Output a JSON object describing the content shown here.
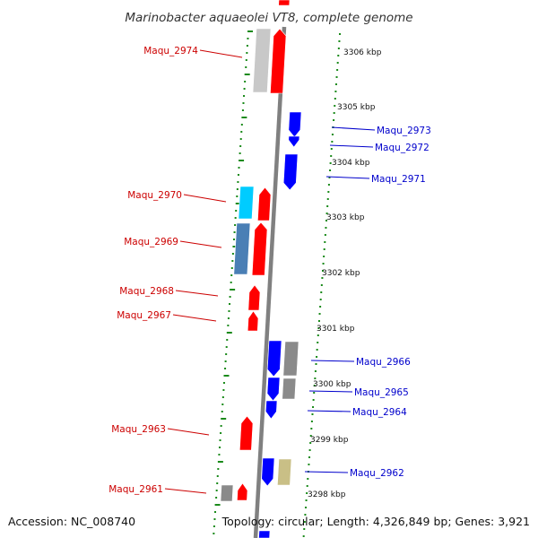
{
  "title": "Marinobacter aquaeolei VT8, complete genome",
  "footer": {
    "accession": "Accession: NC_008740",
    "topology": "Topology: circular; Length: 4,326,849 bp; Genes: 3,921"
  },
  "colors": {
    "forward": "#ff0000",
    "reverse": "#0000ff",
    "label_forward": "#cc0000",
    "label_reverse": "#0000cc",
    "tick": "#1a8a1a",
    "backbone": "#808080",
    "gray": "#8a8a8a",
    "light_gray": "#c8c8c8",
    "cyan": "#00ccff",
    "steel": "#4a7fb5",
    "khaki": "#c9bf86"
  },
  "kbp_labels": [
    "3306 kbp",
    "3305 kbp",
    "3304 kbp",
    "3303 kbp",
    "3302 kbp",
    "3301 kbp",
    "3300 kbp",
    "3299 kbp",
    "3298 kbp"
  ],
  "gene_labels_forward": [
    "Maqu_2974",
    "Maqu_2970",
    "Maqu_2969",
    "Maqu_2968",
    "Maqu_2967",
    "Maqu_2963",
    "Maqu_2961"
  ],
  "gene_labels_reverse": [
    "Maqu_2973",
    "Maqu_2972",
    "Maqu_2971",
    "Maqu_2966",
    "Maqu_2965",
    "Maqu_2964",
    "Maqu_2962"
  ]
}
